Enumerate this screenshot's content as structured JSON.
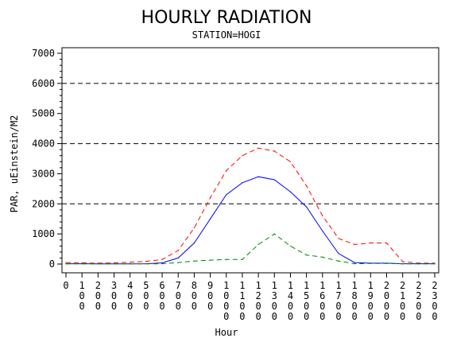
{
  "chart_data": {
    "type": "line",
    "title": "HOURLY RADIATION",
    "subtitle": "STATION=HOGI",
    "xlabel": "Hour",
    "ylabel": "PAR, uEinstein/M2",
    "x": [
      0,
      100,
      200,
      300,
      400,
      500,
      600,
      700,
      800,
      900,
      1000,
      1100,
      1200,
      1300,
      1400,
      1500,
      1600,
      1700,
      1800,
      1900,
      2000,
      2100,
      2200,
      2300
    ],
    "x_tick_labels": [
      "0",
      "100",
      "200",
      "300",
      "400",
      "500",
      "600",
      "700",
      "800",
      "900",
      "1000",
      "1100",
      "1200",
      "1300",
      "1400",
      "1500",
      "1600",
      "1700",
      "1800",
      "1900",
      "2000",
      "2100",
      "2200",
      "2300"
    ],
    "ylim": [
      0,
      7000
    ],
    "y_ticks": [
      0,
      1000,
      2000,
      3000,
      4000,
      5000,
      6000,
      7000
    ],
    "y_tick_labels": [
      "0",
      "1000",
      "2000",
      "3000",
      "4000",
      "5000",
      "6000",
      "7000"
    ],
    "reference_lines": [
      2000,
      4000,
      6000
    ],
    "grid": false,
    "series": [
      {
        "color": "#ff0000",
        "dash": "dashed",
        "values": [
          50,
          40,
          30,
          40,
          60,
          90,
          150,
          450,
          1200,
          2200,
          3100,
          3600,
          3850,
          3750,
          3400,
          2600,
          1600,
          850,
          650,
          700,
          700,
          80,
          30,
          30
        ]
      },
      {
        "color": "#0000ff",
        "dash": "solid",
        "values": [
          10,
          10,
          5,
          5,
          5,
          10,
          40,
          200,
          700,
          1500,
          2300,
          2700,
          2900,
          2800,
          2400,
          1900,
          1100,
          350,
          50,
          30,
          30,
          10,
          10,
          10
        ]
      },
      {
        "color": "#008000",
        "dash": "dashed",
        "values": [
          5,
          5,
          5,
          5,
          5,
          5,
          10,
          50,
          100,
          130,
          150,
          150,
          650,
          1000,
          600,
          300,
          230,
          100,
          10,
          20,
          20,
          5,
          5,
          5
        ]
      }
    ]
  }
}
